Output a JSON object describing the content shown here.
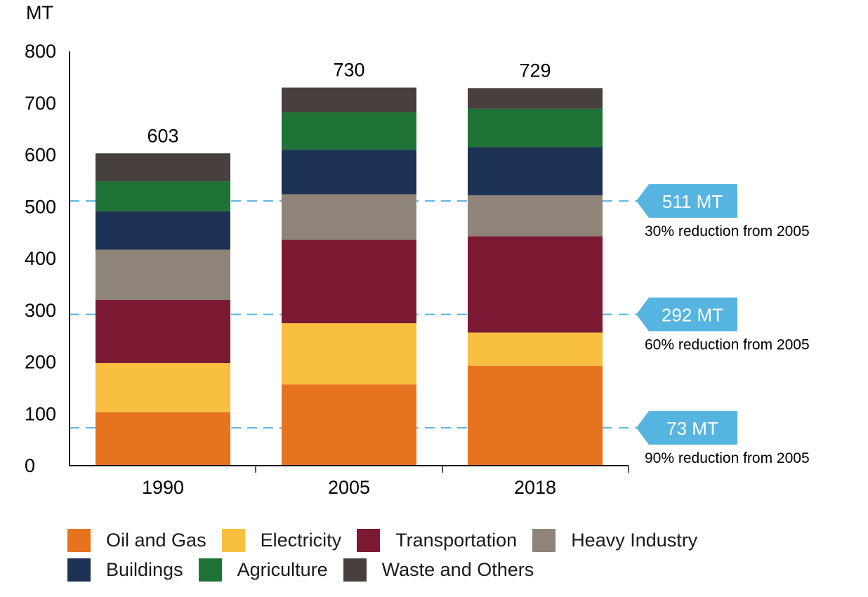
{
  "chart_data": {
    "type": "bar",
    "stacked": true,
    "y_unit_label": "MT",
    "categories": [
      "1990",
      "2005",
      "2018"
    ],
    "totals": [
      "603",
      "730",
      "729"
    ],
    "ylim": [
      0,
      800
    ],
    "yticks": [
      0,
      100,
      200,
      300,
      400,
      500,
      600,
      700,
      800
    ],
    "series": [
      {
        "name": "Oil and Gas",
        "color": "#E8731F",
        "values": [
          103,
          157,
          193
        ]
      },
      {
        "name": "Electricity",
        "color": "#F8BF40",
        "values": [
          95,
          118,
          64
        ]
      },
      {
        "name": "Transportation",
        "color": "#7D1A33",
        "values": [
          122,
          161,
          186
        ]
      },
      {
        "name": "Heavy Industry",
        "color": "#8F8478",
        "values": [
          97,
          88,
          79
        ]
      },
      {
        "name": "Buildings",
        "color": "#1D3355",
        "values": [
          74,
          86,
          93
        ]
      },
      {
        "name": "Agriculture",
        "color": "#1F7235",
        "values": [
          58,
          72,
          74
        ]
      },
      {
        "name": "Waste and Others",
        "color": "#47403D",
        "values": [
          54,
          48,
          40
        ]
      }
    ],
    "reference_lines": [
      {
        "value": 511,
        "label": "511 MT",
        "note": "30% reduction from 2005"
      },
      {
        "value": 292,
        "label": "292 MT",
        "note": "60% reduction from 2005"
      },
      {
        "value": 73,
        "label": "73 MT",
        "note": "90% reduction from 2005"
      }
    ],
    "callout_color": "#56B4E1",
    "legend_rows": [
      [
        "Oil and Gas",
        "Electricity",
        "Transportation",
        "Heavy Industry"
      ],
      [
        "Buildings",
        "Agriculture",
        "Waste and Others"
      ]
    ]
  }
}
